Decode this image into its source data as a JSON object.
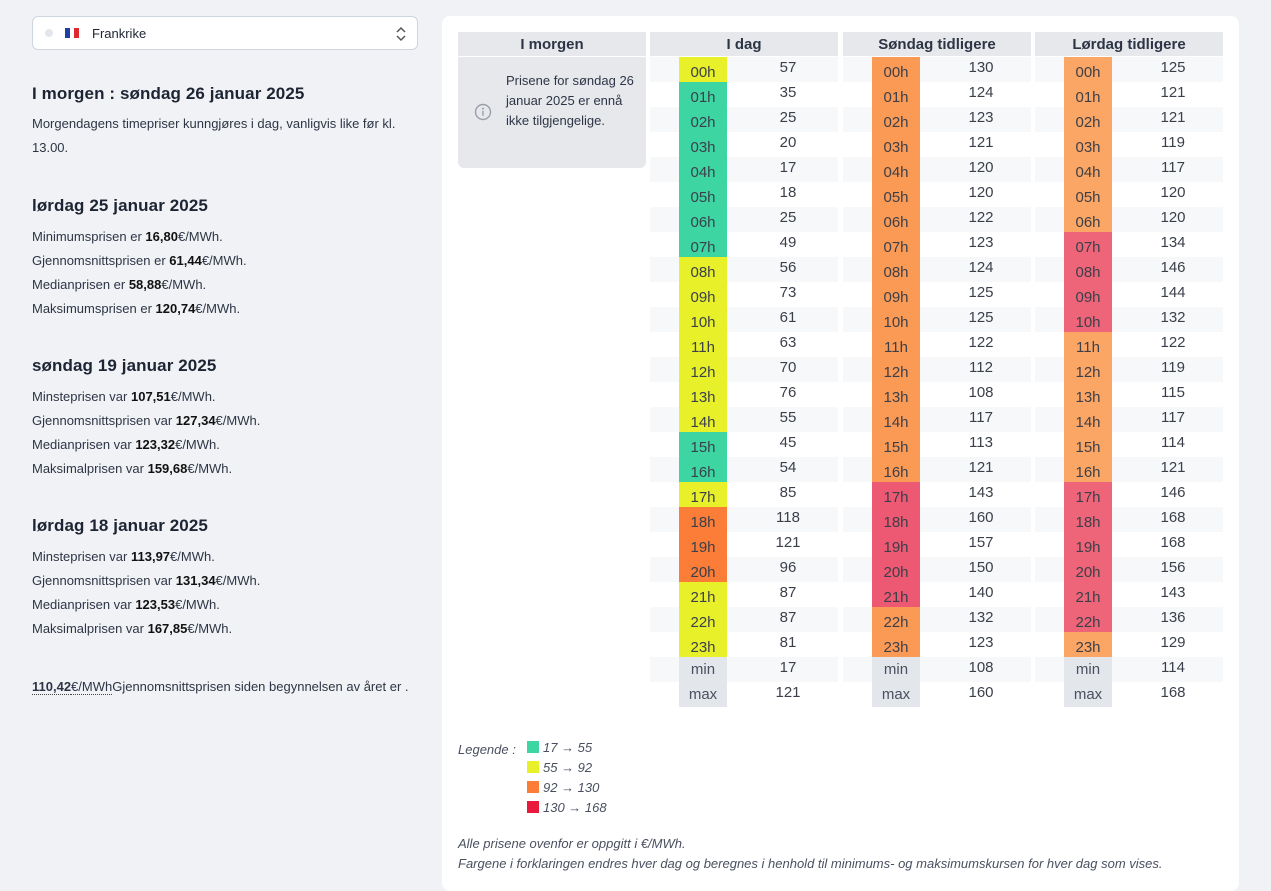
{
  "selector": {
    "country": "Frankrike"
  },
  "tomorrow": {
    "heading": "I morgen : søndag 26 januar 2025",
    "note": "Morgendagens timepriser kunngjøres i dag, vanligvis like før kl. 13.00."
  },
  "today_stats": {
    "heading": "lørdag 25 januar 2025",
    "lines": [
      {
        "label": "Minimumsprisen er ",
        "value": "16,80",
        "unit": "€/MWh."
      },
      {
        "label": "Gjennomsnittsprisen er ",
        "value": "61,44",
        "unit": "€/MWh."
      },
      {
        "label": "Medianprisen er ",
        "value": "58,88",
        "unit": "€/MWh."
      },
      {
        "label": "Maksimumsprisen er ",
        "value": "120,74",
        "unit": "€/MWh."
      }
    ]
  },
  "sunday_stats": {
    "heading": "søndag 19 januar 2025",
    "lines": [
      {
        "label": "Minsteprisen var ",
        "value": "107,51",
        "unit": "€/MWh."
      },
      {
        "label": "Gjennomsnittsprisen var ",
        "value": "127,34",
        "unit": "€/MWh."
      },
      {
        "label": "Medianprisen var ",
        "value": "123,32",
        "unit": "€/MWh."
      },
      {
        "label": "Maksimalprisen var ",
        "value": "159,68",
        "unit": "€/MWh."
      }
    ]
  },
  "saturday_stats": {
    "heading": "lørdag 18 januar 2025",
    "lines": [
      {
        "label": "Minsteprisen var ",
        "value": "113,97",
        "unit": "€/MWh."
      },
      {
        "label": "Gjennomsnittsprisen var ",
        "value": "131,34",
        "unit": "€/MWh."
      },
      {
        "label": "Medianprisen var ",
        "value": "123,53",
        "unit": "€/MWh."
      },
      {
        "label": "Maksimalprisen var ",
        "value": "167,85",
        "unit": "€/MWh."
      }
    ]
  },
  "year_avg": {
    "value": "110,42",
    "unit": "€/MWh",
    "text": "Gjennomsnittsprisen siden begynnelsen av året er ."
  },
  "table": {
    "tomorrow": {
      "title": "I morgen",
      "info": "Prisene for søndag 26 januar 2025 er ennå ikke tilgjengelige."
    },
    "columns": [
      {
        "title": "I dag",
        "values": [
          57,
          35,
          25,
          20,
          17,
          18,
          25,
          49,
          56,
          73,
          61,
          63,
          70,
          76,
          55,
          45,
          54,
          85,
          118,
          121,
          96,
          87,
          87,
          81
        ],
        "min": 17,
        "max": 121
      },
      {
        "title": "Søndag tidligere",
        "values": [
          130,
          124,
          123,
          121,
          120,
          120,
          122,
          123,
          124,
          125,
          125,
          122,
          112,
          108,
          117,
          113,
          121,
          143,
          160,
          157,
          150,
          140,
          132,
          123
        ],
        "min": 108,
        "max": 160
      },
      {
        "title": "Lørdag tidligere",
        "values": [
          125,
          121,
          121,
          119,
          117,
          120,
          120,
          134,
          146,
          144,
          132,
          122,
          119,
          115,
          117,
          114,
          121,
          146,
          168,
          168,
          156,
          143,
          136,
          129
        ],
        "min": 114,
        "max": 168
      }
    ],
    "hour_labels": [
      "00h",
      "01h",
      "02h",
      "03h",
      "04h",
      "05h",
      "06h",
      "07h",
      "08h",
      "09h",
      "10h",
      "11h",
      "12h",
      "13h",
      "14h",
      "15h",
      "16h",
      "17h",
      "18h",
      "19h",
      "20h",
      "21h",
      "22h",
      "23h"
    ],
    "min_label": "min",
    "max_label": "max"
  },
  "legend": {
    "title": "Legende :",
    "items": [
      {
        "range": "17 → 55",
        "color": "#3dd6a3"
      },
      {
        "range": "55 → 92",
        "color": "#e8f02a"
      },
      {
        "range": "92 → 130",
        "color": "#fb7d37"
      },
      {
        "range": "130 → 168",
        "color": "#e8193c"
      }
    ]
  },
  "footnotes": [
    "Alle prisene ovenfor er oppgitt i €/MWh.",
    "Fargene i forklaringen endres hver dag og beregnes i henhold til minimums- og maksimumskursen for hver dag som vises."
  ]
}
